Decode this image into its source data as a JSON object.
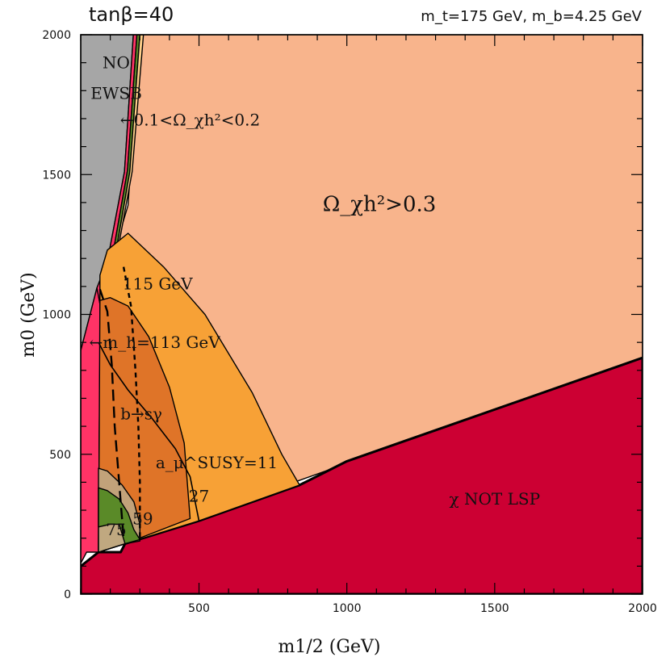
{
  "header": {
    "left": "tanβ=40",
    "right": "m_t=175 GeV,  m_b=4.25 GeV"
  },
  "chart_data": {
    "type": "area",
    "title": "",
    "xlabel": "m1/2 (GeV)",
    "ylabel": "m0 (GeV)",
    "xlim": [
      100,
      2000
    ],
    "ylim": [
      0,
      2000
    ],
    "x_ticks": [
      500,
      1000,
      1500,
      2000
    ],
    "y_ticks": [
      0,
      500,
      1000,
      1500,
      2000
    ],
    "x_tick_labels": [
      "500",
      "1000",
      "1500",
      "2000"
    ],
    "y_tick_labels": [
      "0",
      "500",
      "1000",
      "1500",
      "2000"
    ],
    "regions": [
      {
        "name": "NO EWSB",
        "color": "#a6a6a6",
        "points": [
          [
            100,
            870
          ],
          [
            155,
            1095
          ],
          [
            190,
            1190
          ],
          [
            248,
            1510
          ],
          [
            278,
            2000
          ],
          [
            100,
            2000
          ]
        ]
      },
      {
        "name": "Ω_χ h² > 0.3",
        "color": "#f8b48c",
        "points": [
          [
            300,
            2000
          ],
          [
            2000,
            2000
          ],
          [
            2000,
            845
          ],
          [
            160,
            150
          ],
          [
            162,
            460
          ],
          [
            165,
            850
          ],
          [
            170,
            1010
          ],
          [
            215,
            1230
          ],
          [
            260,
            1390
          ],
          [
            300,
            2000
          ]
        ]
      },
      {
        "name": "χ NOT LSP",
        "color": "#cc0033",
        "points": [
          [
            100,
            0
          ],
          [
            2000,
            0
          ],
          [
            2000,
            845
          ],
          [
            1000,
            475
          ],
          [
            840,
            390
          ],
          [
            500,
            262
          ],
          [
            250,
            180
          ],
          [
            235,
            150
          ],
          [
            160,
            150
          ],
          [
            100,
            100
          ]
        ]
      },
      {
        "name": "0.1<Ω_χ h²<0.2 (pink strip)",
        "color": "#ff3366",
        "points": [
          [
            100,
            870
          ],
          [
            100,
            110
          ],
          [
            120,
            150
          ],
          [
            160,
            150
          ],
          [
            162,
            460
          ],
          [
            165,
            850
          ],
          [
            170,
            1010
          ],
          [
            155,
            1095
          ],
          [
            100,
            870
          ]
        ]
      },
      {
        "name": "0.1<Ω_χ h²<0.2 (pink strip upper)",
        "color": "#ff3366",
        "points": [
          [
            155,
            1095
          ],
          [
            190,
            1190
          ],
          [
            248,
            1510
          ],
          [
            278,
            2000
          ],
          [
            290,
            2000
          ],
          [
            258,
            1515
          ],
          [
            212,
            1235
          ],
          [
            170,
            1010
          ],
          [
            155,
            1095
          ]
        ]
      },
      {
        "name": "0.1<Ω_χ h²<0.2 (green)",
        "color": "#5a8a28",
        "points": [
          [
            290,
            2000
          ],
          [
            300,
            2000
          ],
          [
            266,
            1510
          ],
          [
            222,
            1240
          ],
          [
            212,
            1235
          ],
          [
            258,
            1515
          ],
          [
            290,
            2000
          ]
        ]
      },
      {
        "name": "0.1<Ω_χ h²<0.2 (light strip)",
        "color": "#ffd08a",
        "points": [
          [
            300,
            2000
          ],
          [
            312,
            2000
          ],
          [
            274,
            1510
          ],
          [
            228,
            1245
          ],
          [
            222,
            1240
          ],
          [
            266,
            1510
          ],
          [
            300,
            2000
          ]
        ]
      },
      {
        "name": "a_μ^SUSY region 11",
        "color": "#f7a136",
        "points": [
          [
            165,
            1140
          ],
          [
            190,
            1230
          ],
          [
            260,
            1290
          ],
          [
            380,
            1170
          ],
          [
            520,
            1000
          ],
          [
            680,
            720
          ],
          [
            780,
            500
          ],
          [
            840,
            390
          ],
          [
            500,
            262
          ],
          [
            250,
            180
          ],
          [
            160,
            150
          ],
          [
            162,
            460
          ],
          [
            165,
            850
          ],
          [
            165,
            1140
          ]
        ]
      },
      {
        "name": "a_μ^SUSY region 27",
        "color": "#df7428",
        "points": [
          [
            165,
            1050
          ],
          [
            200,
            1060
          ],
          [
            260,
            1030
          ],
          [
            330,
            920
          ],
          [
            400,
            740
          ],
          [
            450,
            540
          ],
          [
            470,
            270
          ],
          [
            250,
            180
          ],
          [
            160,
            150
          ],
          [
            162,
            460
          ],
          [
            165,
            1050
          ]
        ]
      },
      {
        "name": "a_μ^SUSY region 59",
        "color": "#c2a27a",
        "points": [
          [
            160,
            450
          ],
          [
            190,
            440
          ],
          [
            240,
            390
          ],
          [
            280,
            330
          ],
          [
            300,
            250
          ],
          [
            300,
            190
          ],
          [
            250,
            180
          ],
          [
            160,
            150
          ],
          [
            160,
            450
          ]
        ]
      },
      {
        "name": "a_μ^SUSY region 75",
        "color": "#c0a880",
        "points": [
          [
            160,
            380
          ],
          [
            200,
            360
          ],
          [
            240,
            320
          ],
          [
            260,
            270
          ],
          [
            270,
            200
          ],
          [
            250,
            180
          ],
          [
            160,
            150
          ],
          [
            160,
            380
          ]
        ]
      },
      {
        "name": "green region",
        "color": "#5a8a28",
        "points": [
          [
            160,
            380
          ],
          [
            190,
            370
          ],
          [
            230,
            340
          ],
          [
            260,
            290
          ],
          [
            280,
            230
          ],
          [
            300,
            195
          ],
          [
            250,
            180
          ],
          [
            230,
            250
          ],
          [
            200,
            250
          ],
          [
            160,
            240
          ],
          [
            160,
            380
          ]
        ]
      }
    ],
    "curves": [
      {
        "name": "m_h = 113 GeV",
        "style": "dashed-long",
        "points": [
          [
            165,
            1090
          ],
          [
            190,
            1010
          ],
          [
            205,
            820
          ],
          [
            215,
            600
          ],
          [
            230,
            400
          ],
          [
            245,
            200
          ]
        ]
      },
      {
        "name": "m_h = 115 GeV",
        "style": "dashed",
        "points": [
          [
            245,
            1170
          ],
          [
            270,
            1030
          ],
          [
            285,
            800
          ],
          [
            295,
            600
          ],
          [
            300,
            400
          ],
          [
            300,
            200
          ]
        ]
      },
      {
        "name": "b → sγ",
        "style": "solid",
        "points": [
          [
            160,
            900
          ],
          [
            200,
            820
          ],
          [
            260,
            730
          ],
          [
            340,
            630
          ],
          [
            420,
            520
          ],
          [
            470,
            420
          ],
          [
            500,
            262
          ]
        ]
      }
    ],
    "annotations": [
      {
        "text": "NO",
        "x": 220,
        "y": 1880
      },
      {
        "text": "EWSB",
        "x": 220,
        "y": 1770
      },
      {
        "text": "←0.1<Ω_χh²<0.2",
        "x": 470,
        "y": 1675
      },
      {
        "text": "Ω_χh²>0.3",
        "x": 1110,
        "y": 1370
      },
      {
        "text": "115 GeV",
        "x": 360,
        "y": 1090
      },
      {
        "text": "←m_h=113 GeV",
        "x": 350,
        "y": 880
      },
      {
        "text": "b→sγ",
        "x": 305,
        "y": 625
      },
      {
        "text": "a_μ^SUSY=11",
        "x": 560,
        "y": 450
      },
      {
        "text": "27",
        "x": 500,
        "y": 330
      },
      {
        "text": "59",
        "x": 310,
        "y": 250
      },
      {
        "text": "75",
        "x": 220,
        "y": 210
      },
      {
        "text": "χ NOT LSP",
        "x": 1500,
        "y": 320
      }
    ]
  }
}
